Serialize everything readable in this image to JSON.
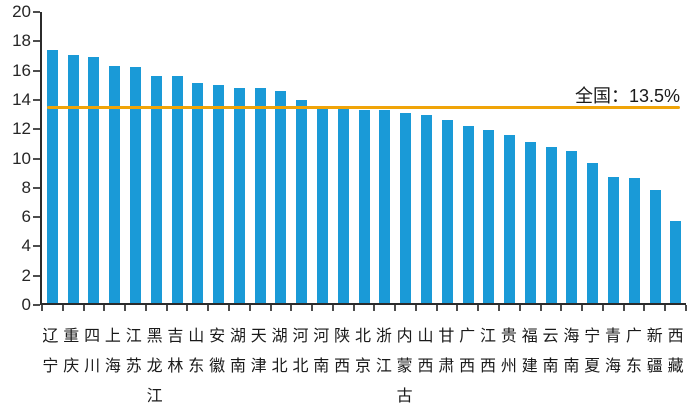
{
  "chart_data": {
    "type": "bar",
    "title": "",
    "xlabel": "",
    "ylabel": "",
    "categories": [
      "辽宁",
      "重庆",
      "四川",
      "上海",
      "江苏",
      "黑龙江",
      "吉林",
      "山东",
      "安徽",
      "湖南",
      "天津",
      "湖北",
      "河北",
      "河南",
      "陕西",
      "北京",
      "浙江",
      "内蒙古",
      "山西",
      "甘肃",
      "广西",
      "江西",
      "贵州",
      "福建",
      "云南",
      "海南",
      "宁夏",
      "青海",
      "广东",
      "新疆",
      "西藏"
    ],
    "values": [
      17.42,
      17.08,
      16.93,
      16.28,
      16.2,
      15.61,
      15.61,
      15.13,
      15.01,
      14.81,
      14.75,
      14.59,
      13.92,
      13.49,
      13.32,
      13.3,
      13.27,
      13.05,
      12.9,
      12.58,
      12.2,
      11.89,
      11.56,
      11.1,
      10.75,
      10.43,
      9.62,
      8.68,
      8.58,
      7.76,
      5.67
    ],
    "ylim": [
      0,
      20
    ],
    "y_ticks": [
      0,
      2,
      4,
      6,
      8,
      10,
      12,
      14,
      16,
      18,
      20
    ],
    "grid": "off",
    "legend": "none",
    "bar_color": "#1a9ad7",
    "reference_line": {
      "label": "全国：13.5%",
      "value": 13.5,
      "color": "#f0a408"
    }
  }
}
